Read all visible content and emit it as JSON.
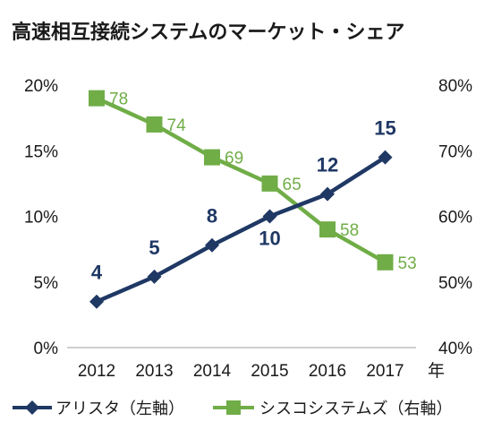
{
  "chart_data": {
    "type": "line",
    "title": "高速相互接続システムのマーケット・シェア",
    "categories": [
      "2012",
      "2013",
      "2014",
      "2015",
      "2016",
      "2017"
    ],
    "x_unit": "年",
    "y_left": {
      "min": 0,
      "max": 20,
      "ticks": [
        "0%",
        "5%",
        "10%",
        "15%",
        "20%"
      ],
      "tick_values": [
        0,
        5,
        10,
        15,
        20
      ]
    },
    "y_right": {
      "min": 40,
      "max": 80,
      "ticks": [
        "40%",
        "50%",
        "60%",
        "70%",
        "80%"
      ],
      "tick_values": [
        40,
        50,
        60,
        70,
        80
      ]
    },
    "grid": false,
    "legend_position": "bottom",
    "series": [
      {
        "name": "アリスタ（左軸）",
        "axis": "left",
        "color": "#1f3864",
        "marker": "diamond",
        "values": [
          3.5,
          5.4,
          7.8,
          10.0,
          11.7,
          14.5
        ],
        "labels": [
          "4",
          "5",
          "8",
          "10",
          "12",
          "15"
        ]
      },
      {
        "name": "シスコシステムズ（右軸）",
        "axis": "right",
        "color": "#70ad47",
        "marker": "square",
        "values": [
          78,
          74,
          69,
          65,
          58,
          53
        ],
        "labels": [
          "78",
          "74",
          "69",
          "65",
          "58",
          "53"
        ]
      }
    ]
  }
}
